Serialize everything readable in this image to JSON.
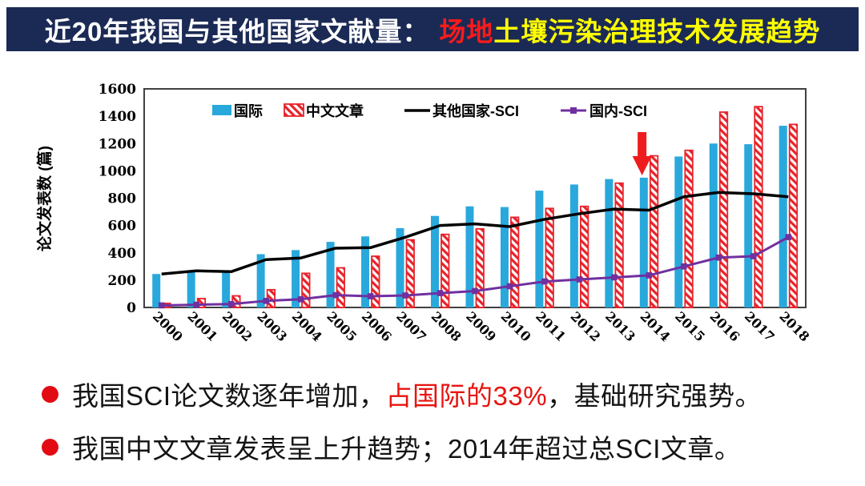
{
  "header": {
    "prefix": "近20年我国与其他国家文献量：",
    "em1": "场地",
    "em2": "土壤污染治理技术发展趋势"
  },
  "colors": {
    "header_bg": "#1b2a55",
    "header_text": "#ffffff",
    "em1": "#ff1a1a",
    "em2": "#ffff00",
    "bar_blue": "#29a8dc",
    "bar_red": "#e8232a",
    "line_black": "#000000",
    "line_purple": "#7030a0",
    "arrow": "#ee1c1c",
    "bullet_dot": "#e30b13",
    "bullet_red_text": "#e8130f",
    "plot_frame": "#404040"
  },
  "chart_data": {
    "type": "combo-bar-line",
    "title": "",
    "ylabel": "论文发表数 (篇)",
    "xlabel": "",
    "ylim": [
      0,
      1600
    ],
    "ytick_step": 200,
    "grid": false,
    "legend_position": "top-inside",
    "categories": [
      2000,
      2001,
      2002,
      2003,
      2004,
      2005,
      2006,
      2007,
      2008,
      2009,
      2010,
      2011,
      2012,
      2013,
      2014,
      2015,
      2016,
      2017,
      2018
    ],
    "series": [
      {
        "name": "国际",
        "type": "bar",
        "style": "solid",
        "color": "#29a8dc",
        "values": [
          245,
          270,
          270,
          390,
          420,
          480,
          520,
          580,
          670,
          740,
          735,
          855,
          900,
          940,
          950,
          1105,
          1200,
          1195,
          1330
        ]
      },
      {
        "name": "中文文章",
        "type": "bar",
        "style": "hatched",
        "color": "#e8232a",
        "values": [
          30,
          65,
          85,
          130,
          250,
          290,
          375,
          495,
          535,
          575,
          660,
          725,
          740,
          910,
          1110,
          1150,
          1430,
          1470,
          1340
        ]
      },
      {
        "name": "其他国家-SCI",
        "type": "line",
        "marker": "none",
        "color": "#000000",
        "values": [
          245,
          268,
          262,
          350,
          362,
          434,
          438,
          514,
          600,
          612,
          592,
          645,
          686,
          720,
          712,
          810,
          842,
          832,
          810
        ]
      },
      {
        "name": "国内-SCI",
        "type": "line",
        "marker": "square",
        "color": "#7030a0",
        "values": [
          15,
          20,
          25,
          48,
          60,
          90,
          82,
          88,
          105,
          120,
          155,
          190,
          205,
          220,
          235,
          300,
          365,
          375,
          515
        ]
      }
    ],
    "annotation": {
      "type": "down-arrow",
      "category": 2014,
      "color": "#ee1c1c"
    }
  },
  "bullets": [
    {
      "segments": [
        {
          "text": "我国SCI论文数逐年增加，",
          "color": "black"
        },
        {
          "text": "占国际的33%",
          "color": "red"
        },
        {
          "text": "，基础研究强势。",
          "color": "black"
        }
      ]
    },
    {
      "segments": [
        {
          "text": "我国中文文章发表呈上升趋势；2014年超过总SCI文章。",
          "color": "black"
        }
      ]
    }
  ]
}
